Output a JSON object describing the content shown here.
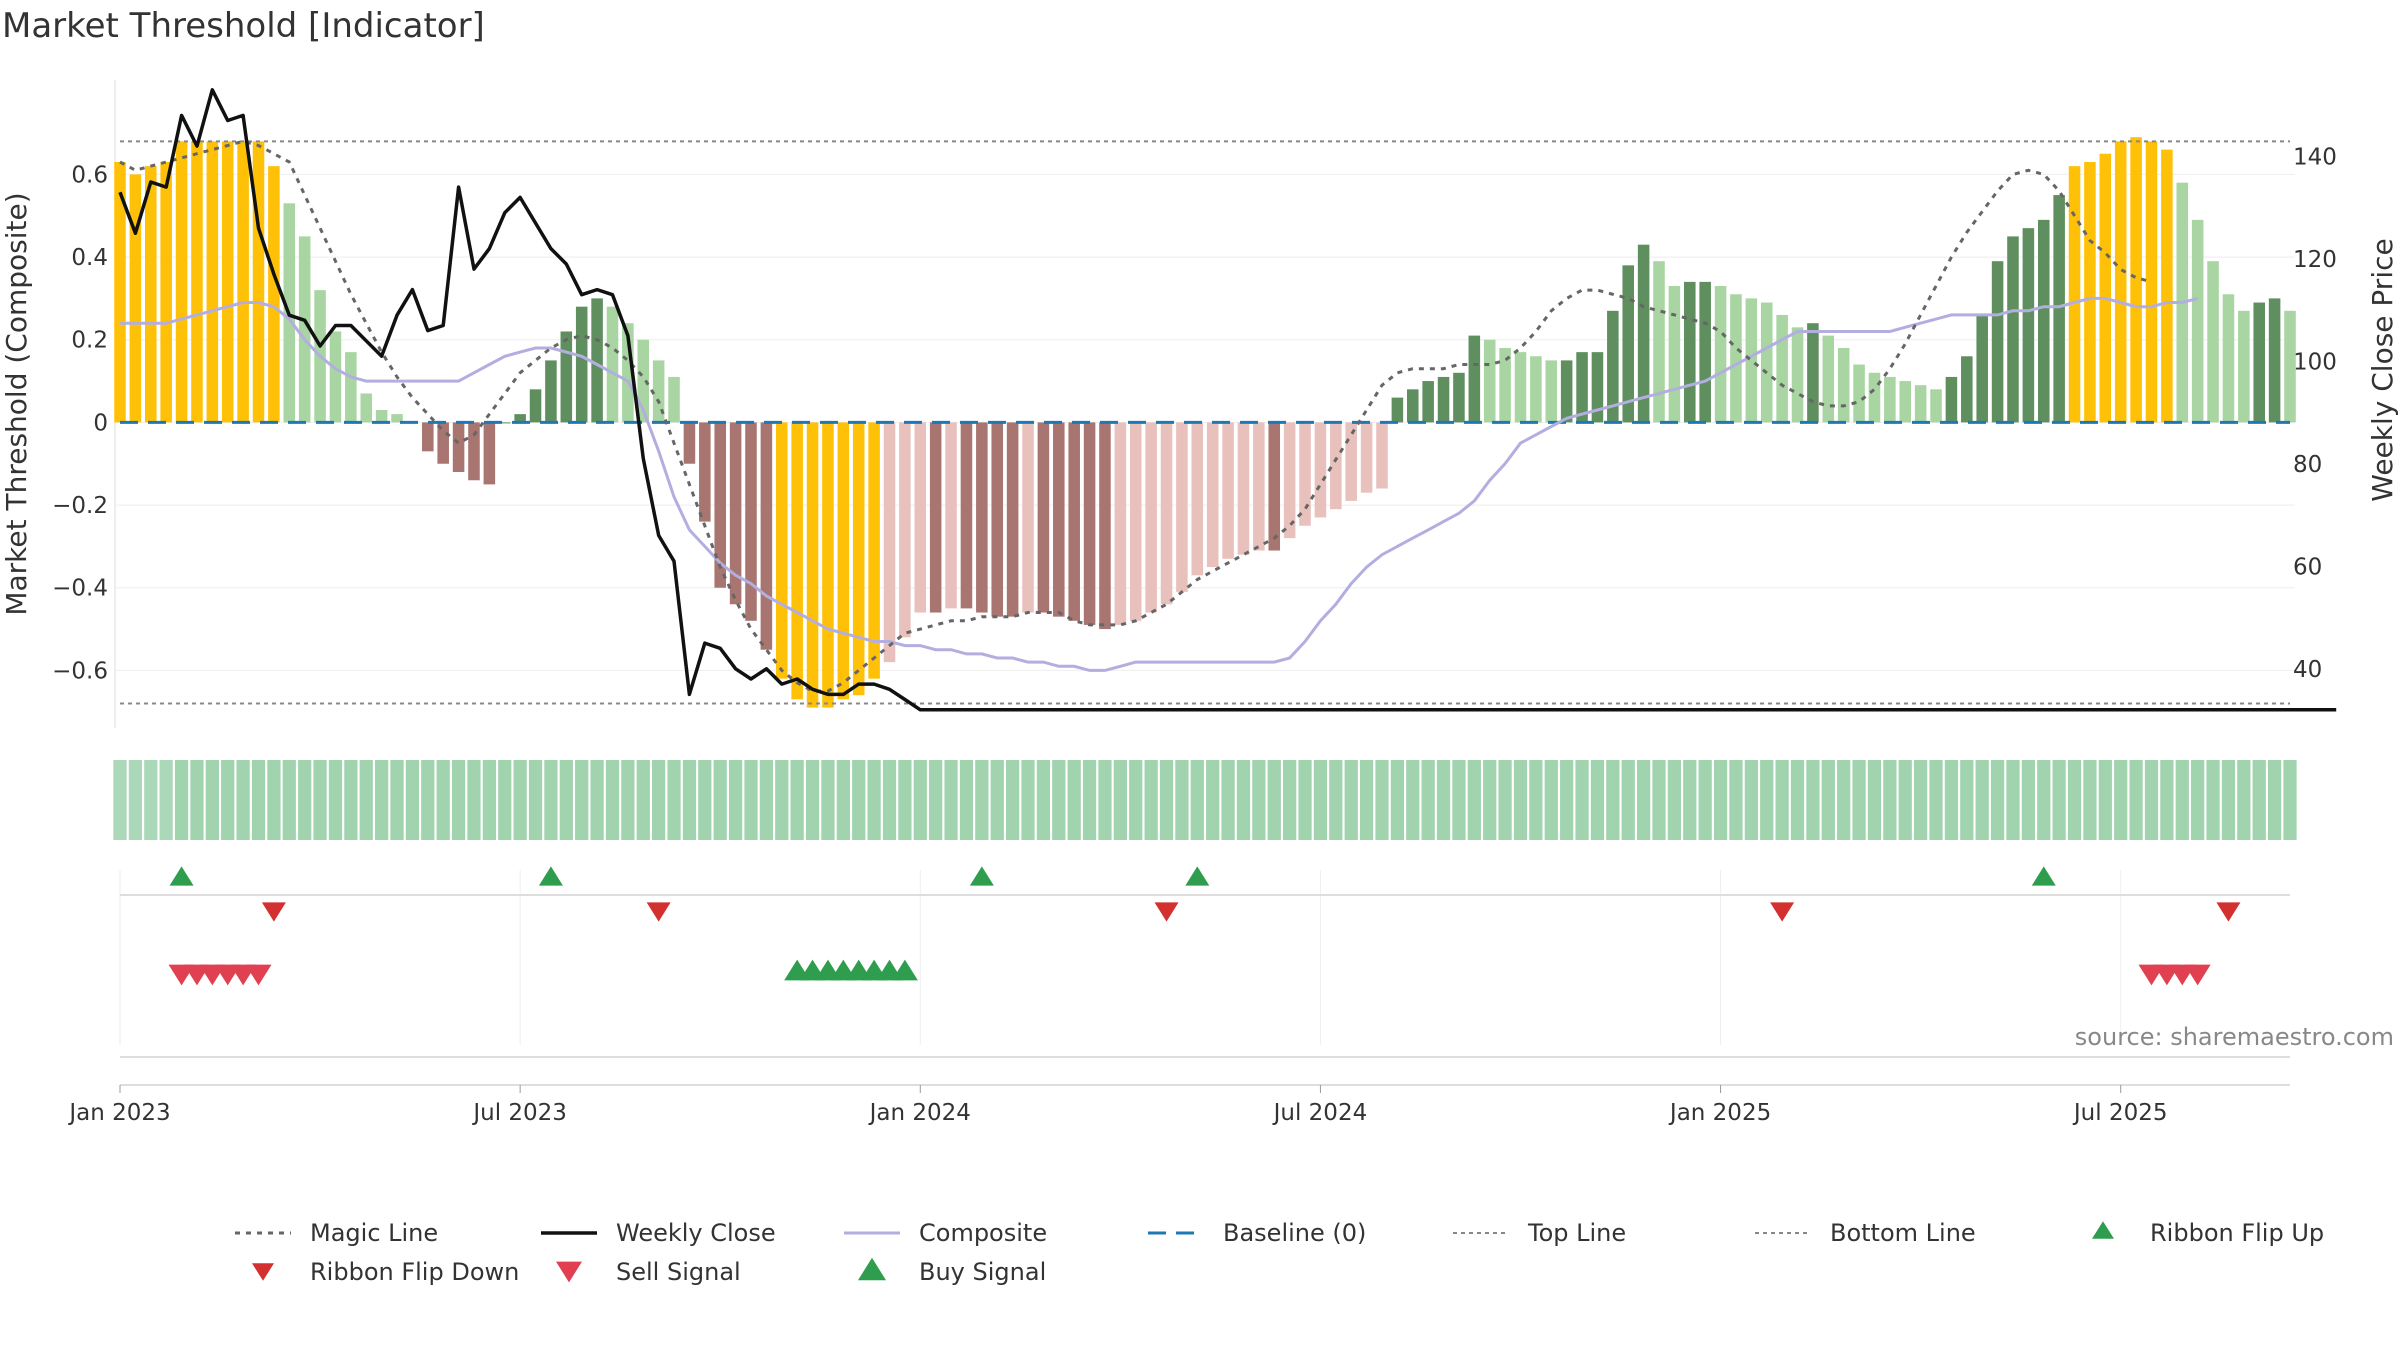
{
  "chart_data": {
    "title": "Market Threshold [Indicator]",
    "type": "bar+line",
    "ylabel_left": "Market Threshold (Composite)",
    "ylabel_right": "Weekly Close Price",
    "ylim_left": [
      -0.72,
      0.78
    ],
    "ylim_right": [
      30,
      151
    ],
    "left_ticks": [
      0.6,
      0.4,
      0.2,
      0,
      -0.2,
      -0.4,
      -0.6
    ],
    "left_tick_labels": [
      "0.6",
      "0.4",
      "0.2",
      "0",
      "−0.2",
      "−0.4",
      "−0.6"
    ],
    "right_ticks": [
      140,
      120,
      100,
      80,
      60,
      40
    ],
    "top_line": 0.68,
    "bottom_line": -0.68,
    "x_tick_labels": [
      "Jan 2023",
      "Jul 2023",
      "Jan 2024",
      "Jul 2024",
      "Jan 2025",
      "Jul 2025"
    ],
    "x_tick_weeks": [
      0,
      26,
      52,
      78,
      104,
      130
    ],
    "start_date": "2023-01-02",
    "series": [
      {
        "name": "Magic Line",
        "axis": "left",
        "values": [
          0.63,
          0.61,
          0.62,
          0.63,
          0.64,
          0.65,
          0.66,
          0.67,
          0.68,
          0.67,
          0.65,
          0.63,
          0.55,
          0.47,
          0.39,
          0.31,
          0.24,
          0.17,
          0.11,
          0.06,
          0.02,
          -0.02,
          -0.05,
          -0.03,
          0.02,
          0.07,
          0.12,
          0.15,
          0.18,
          0.2,
          0.21,
          0.2,
          0.18,
          0.15,
          0.11,
          0.05,
          -0.05,
          -0.15,
          -0.25,
          -0.35,
          -0.43,
          -0.5,
          -0.55,
          -0.6,
          -0.63,
          -0.65,
          -0.65,
          -0.63,
          -0.6,
          -0.57,
          -0.54,
          -0.51,
          -0.5,
          -0.49,
          -0.48,
          -0.48,
          -0.47,
          -0.47,
          -0.47,
          -0.46,
          -0.46,
          -0.46,
          -0.48,
          -0.49,
          -0.49,
          -0.49,
          -0.48,
          -0.46,
          -0.44,
          -0.41,
          -0.38,
          -0.36,
          -0.34,
          -0.32,
          -0.3,
          -0.28,
          -0.25,
          -0.21,
          -0.15,
          -0.09,
          -0.03,
          0.03,
          0.09,
          0.12,
          0.13,
          0.13,
          0.13,
          0.14,
          0.14,
          0.14,
          0.15,
          0.18,
          0.22,
          0.27,
          0.3,
          0.32,
          0.32,
          0.31,
          0.3,
          0.28,
          0.27,
          0.26,
          0.25,
          0.24,
          0.22,
          0.18,
          0.15,
          0.12,
          0.09,
          0.07,
          0.05,
          0.04,
          0.04,
          0.05,
          0.08,
          0.13,
          0.19,
          0.26,
          0.33,
          0.4,
          0.46,
          0.51,
          0.56,
          0.6,
          0.61,
          0.6,
          0.56,
          0.5,
          0.44,
          0.41,
          0.37,
          0.35,
          0.34
        ]
      },
      {
        "name": "Weekly Close",
        "axis": "right",
        "values": [
          133,
          125,
          135,
          134,
          148,
          142,
          153,
          147,
          148,
          126,
          117,
          109,
          108,
          103,
          107,
          107,
          104,
          101,
          109,
          114,
          106,
          107,
          134,
          118,
          122,
          129,
          132,
          127,
          122,
          119,
          113,
          114,
          113,
          105,
          81,
          66,
          61,
          35,
          45,
          44,
          40,
          38,
          40,
          37,
          38,
          36,
          35,
          35,
          37,
          37,
          36,
          34,
          32,
          32,
          32,
          32,
          32,
          32,
          32,
          32,
          32,
          32,
          32,
          32,
          32,
          32,
          32,
          32,
          32,
          32,
          32,
          32,
          32,
          32,
          32,
          32,
          32,
          32,
          32,
          32,
          32,
          32,
          32,
          32,
          32,
          32,
          32,
          32,
          32,
          32,
          32,
          32,
          32,
          32,
          32,
          32,
          32,
          32,
          32,
          32,
          32,
          32,
          32,
          32,
          32,
          32,
          32,
          32,
          32,
          32,
          32,
          32,
          32,
          32,
          32,
          32,
          32,
          32,
          32,
          32,
          32,
          32,
          32,
          32,
          32,
          32,
          32,
          32,
          32,
          32,
          32,
          32,
          32,
          32,
          32,
          32,
          32,
          32,
          32,
          32,
          32,
          32,
          32,
          32,
          32
        ]
      },
      {
        "name": "Composite",
        "axis": "left",
        "values": [
          0.24,
          0.24,
          0.24,
          0.24,
          0.25,
          0.26,
          0.27,
          0.28,
          0.29,
          0.29,
          0.28,
          0.25,
          0.2,
          0.16,
          0.13,
          0.11,
          0.1,
          0.1,
          0.1,
          0.1,
          0.1,
          0.1,
          0.1,
          0.12,
          0.14,
          0.16,
          0.17,
          0.18,
          0.18,
          0.17,
          0.16,
          0.14,
          0.12,
          0.1,
          0.03,
          -0.07,
          -0.18,
          -0.26,
          -0.3,
          -0.34,
          -0.37,
          -0.39,
          -0.42,
          -0.44,
          -0.46,
          -0.48,
          -0.5,
          -0.51,
          -0.52,
          -0.53,
          -0.53,
          -0.54,
          -0.54,
          -0.55,
          -0.55,
          -0.56,
          -0.56,
          -0.57,
          -0.57,
          -0.58,
          -0.58,
          -0.59,
          -0.59,
          -0.6,
          -0.6,
          -0.59,
          -0.58,
          -0.58,
          -0.58,
          -0.58,
          -0.58,
          -0.58,
          -0.58,
          -0.58,
          -0.58,
          -0.58,
          -0.57,
          -0.53,
          -0.48,
          -0.44,
          -0.39,
          -0.35,
          -0.32,
          -0.3,
          -0.28,
          -0.26,
          -0.24,
          -0.22,
          -0.19,
          -0.14,
          -0.1,
          -0.05,
          -0.03,
          -0.01,
          0.01,
          0.02,
          0.03,
          0.04,
          0.05,
          0.06,
          0.07,
          0.08,
          0.09,
          0.1,
          0.12,
          0.14,
          0.16,
          0.18,
          0.2,
          0.22,
          0.22,
          0.22,
          0.22,
          0.22,
          0.22,
          0.22,
          0.23,
          0.24,
          0.25,
          0.26,
          0.26,
          0.26,
          0.26,
          0.27,
          0.27,
          0.28,
          0.28,
          0.29,
          0.3,
          0.3,
          0.29,
          0.28,
          0.28,
          0.29,
          0.29,
          0.3
        ]
      }
    ],
    "threshold_bars": {
      "name": "Market Threshold (Composite)",
      "values": [
        0.63,
        0.6,
        0.62,
        0.63,
        0.68,
        0.68,
        0.68,
        0.68,
        0.68,
        0.68,
        0.62,
        0.53,
        0.45,
        0.32,
        0.22,
        0.17,
        0.07,
        0.03,
        0.02,
        0,
        -0.07,
        -0.1,
        -0.12,
        -0.14,
        -0.15,
        0,
        0.02,
        0.08,
        0.15,
        0.22,
        0.28,
        0.3,
        0.28,
        0.24,
        0.2,
        0.15,
        0.11,
        -0.1,
        -0.24,
        -0.4,
        -0.44,
        -0.48,
        -0.55,
        -0.62,
        -0.67,
        -0.69,
        -0.69,
        -0.67,
        -0.66,
        -0.62,
        -0.58,
        -0.52,
        -0.46,
        -0.46,
        -0.45,
        -0.45,
        -0.46,
        -0.47,
        -0.47,
        -0.46,
        -0.46,
        -0.47,
        -0.48,
        -0.49,
        -0.5,
        -0.49,
        -0.48,
        -0.46,
        -0.44,
        -0.41,
        -0.37,
        -0.35,
        -0.33,
        -0.32,
        -0.31,
        -0.31,
        -0.28,
        -0.25,
        -0.23,
        -0.21,
        -0.19,
        -0.17,
        -0.16,
        0.06,
        0.08,
        0.1,
        0.11,
        0.12,
        0.21,
        0.2,
        0.18,
        0.17,
        0.16,
        0.15,
        0.15,
        0.17,
        0.17,
        0.27,
        0.38,
        0.43,
        0.39,
        0.33,
        0.34,
        0.34,
        0.33,
        0.31,
        0.3,
        0.29,
        0.26,
        0.23,
        0.24,
        0.21,
        0.18,
        0.14,
        0.12,
        0.11,
        0.1,
        0.09,
        0.08,
        0.11,
        0.16,
        0.26,
        0.39,
        0.45,
        0.47,
        0.49,
        0.55,
        0.62,
        0.63,
        0.65,
        0.68,
        0.69,
        0.68,
        0.66,
        0.58,
        0.49,
        0.39,
        0.31,
        0.27,
        0.29,
        0.3,
        0.27
      ]
    },
    "ribbon_values": [
      0.25,
      0.25,
      0.25,
      0.25,
      0.3,
      0.3,
      0.3,
      0.3,
      0.3,
      0.3,
      0.3,
      0.3,
      0.3,
      0.3,
      0.3,
      0.3,
      0.3,
      0.3,
      0.3,
      0.3,
      0.3,
      0.3,
      0.3,
      0.3,
      0.3,
      0.3,
      0.3,
      0.3,
      0.3,
      0.3,
      0.3,
      0.3,
      0.3,
      0.3,
      0.3,
      0.3,
      0.3,
      0.3,
      0.3,
      0.3,
      0.3,
      0.3,
      0.3,
      0.3,
      0.3,
      0.3,
      0.3,
      0.3,
      0.3,
      0.3,
      0.3,
      0.3,
      0.3,
      0.3,
      0.3,
      0.3,
      0.3,
      0.3,
      0.3,
      0.3,
      0.3,
      0.3,
      0.3,
      0.3,
      0.3,
      0.3,
      0.3,
      0.3,
      0.3,
      0.3,
      0.3,
      0.3,
      0.3,
      0.3,
      0.3,
      0.3,
      0.3,
      0.3,
      0.3,
      0.3,
      0.3,
      0.3,
      0.3,
      0.3,
      0.3,
      0.3,
      0.3,
      0.3,
      0.3,
      0.3,
      0.3,
      0.3,
      0.3,
      0.3,
      0.3,
      0.3,
      0.3,
      0.3,
      0.3,
      0.3,
      0.3,
      0.3,
      0.3,
      0.3,
      0.3,
      0.3,
      0.3,
      0.3,
      0.3,
      0.3,
      0.3,
      0.3,
      0.3,
      0.3,
      0.3,
      0.3,
      0.3,
      0.3,
      0.3,
      0.3,
      0.3,
      0.3,
      0.3,
      0.3,
      0.3,
      0.3,
      0.3,
      0.3,
      0.3,
      0.3,
      0.3,
      0.3,
      0.3,
      0.3,
      0.3,
      0.3,
      0.3,
      0.3,
      0.3,
      0.3,
      0.3,
      0.3
    ],
    "ribbon_flip_up_weeks": [
      4,
      28,
      56,
      70,
      125
    ],
    "ribbon_flip_down_weeks": [
      10,
      35,
      68,
      108,
      137
    ],
    "sell_signal_weeks": [
      4,
      5,
      6,
      7,
      8,
      9,
      132,
      133,
      134,
      135
    ],
    "buy_signal_weeks": [
      44,
      45,
      46,
      47,
      48,
      49,
      50,
      51
    ],
    "legend": [
      {
        "label": "Magic Line",
        "key": "magic"
      },
      {
        "label": "Weekly Close",
        "key": "close"
      },
      {
        "label": "Composite",
        "key": "composite"
      },
      {
        "label": "Baseline (0)",
        "key": "baseline"
      },
      {
        "label": "Top Line",
        "key": "top"
      },
      {
        "label": "Bottom Line",
        "key": "bottom"
      },
      {
        "label": "Ribbon Flip Up",
        "key": "flipup"
      },
      {
        "label": "Ribbon Flip Down",
        "key": "flipdown"
      },
      {
        "label": "Sell Signal",
        "key": "sell"
      },
      {
        "label": "Buy Signal",
        "key": "buy"
      }
    ],
    "source": "source: sharemaestro.com"
  },
  "colors": {
    "extreme_bar": "#FFC107",
    "pos_strong": "#5f8f5f",
    "pos_light": "#a8d5a2",
    "neg_strong": "#a87570",
    "neg_light": "#e8c1bd",
    "magic_line": "#666666",
    "close_line": "#111111",
    "composite_line": "#b3aee0",
    "baseline": "#1f77b4",
    "flip_up": "#2e9e4e",
    "flip_down": "#d33030",
    "sell": "#e04050",
    "buy": "#2e9e4e"
  }
}
